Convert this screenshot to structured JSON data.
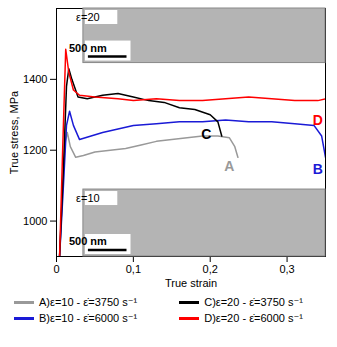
{
  "chart_data": {
    "type": "line",
    "x_label": "True strain",
    "y_label": "True stress, MPa",
    "xlim": [
      0,
      0.35
    ],
    "xticks": [
      0,
      {
        "value": 0.1,
        "label": "0,1"
      },
      {
        "value": 0.2,
        "label": "0,2"
      },
      {
        "value": 0.3,
        "label": "0,3"
      }
    ],
    "ylim": [
      900,
      1600
    ],
    "yticks": [
      1000,
      1200,
      1400
    ],
    "grid": false,
    "legend": "bottom",
    "series": [
      {
        "name": "A)ε=10 - ε̇=3750 s⁻¹",
        "end_label": "A",
        "label_x": 0.225,
        "label_y": 1155,
        "color": "#999999",
        "x": [
          0.004,
          0.008,
          0.011,
          0.014,
          0.018,
          0.025,
          0.035,
          0.05,
          0.07,
          0.09,
          0.11,
          0.13,
          0.15,
          0.17,
          0.19,
          0.21,
          0.225,
          0.232,
          0.236
        ],
        "values": [
          900,
          1080,
          1220,
          1250,
          1210,
          1180,
          1185,
          1195,
          1200,
          1205,
          1215,
          1225,
          1230,
          1235,
          1240,
          1240,
          1235,
          1210,
          1180
        ]
      },
      {
        "name": "B)ε=10 - ε̇=6000 s⁻¹",
        "end_label": "B",
        "label_x": 0.34,
        "label_y": 1145,
        "color": "#1a1ad6",
        "x": [
          0.004,
          0.009,
          0.013,
          0.017,
          0.022,
          0.03,
          0.045,
          0.06,
          0.08,
          0.1,
          0.13,
          0.16,
          0.19,
          0.22,
          0.25,
          0.28,
          0.31,
          0.335,
          0.345,
          0.35
        ],
        "values": [
          900,
          1100,
          1270,
          1310,
          1270,
          1230,
          1240,
          1250,
          1260,
          1270,
          1275,
          1280,
          1280,
          1285,
          1280,
          1280,
          1275,
          1270,
          1240,
          1180
        ]
      },
      {
        "name": "C)ε=20 - ε̇=3750 s⁻¹",
        "end_label": "C",
        "label_x": 0.195,
        "label_y": 1245,
        "color": "#000000",
        "x": [
          0.004,
          0.009,
          0.013,
          0.016,
          0.02,
          0.028,
          0.04,
          0.06,
          0.08,
          0.1,
          0.12,
          0.14,
          0.16,
          0.18,
          0.2,
          0.21,
          0.215
        ],
        "values": [
          900,
          1150,
          1380,
          1430,
          1400,
          1350,
          1345,
          1355,
          1360,
          1350,
          1340,
          1335,
          1320,
          1315,
          1300,
          1280,
          1240
        ]
      },
      {
        "name": "D)ε=20 - ε̇=6000 s⁻¹",
        "end_label": "D",
        "label_x": 0.34,
        "label_y": 1285,
        "color": "#ff0000",
        "x": [
          0.004,
          0.008,
          0.012,
          0.016,
          0.022,
          0.03,
          0.05,
          0.08,
          0.1,
          0.13,
          0.16,
          0.19,
          0.22,
          0.25,
          0.28,
          0.31,
          0.34,
          0.35
        ],
        "values": [
          900,
          1200,
          1485,
          1420,
          1370,
          1355,
          1350,
          1345,
          1340,
          1345,
          1340,
          1340,
          1345,
          1350,
          1345,
          1340,
          1340,
          1345
        ]
      }
    ],
    "insets": [
      {
        "label": "ε=20",
        "scale_bar": "500 nm"
      },
      {
        "label": "ε=10",
        "scale_bar": "500 nm"
      }
    ]
  }
}
